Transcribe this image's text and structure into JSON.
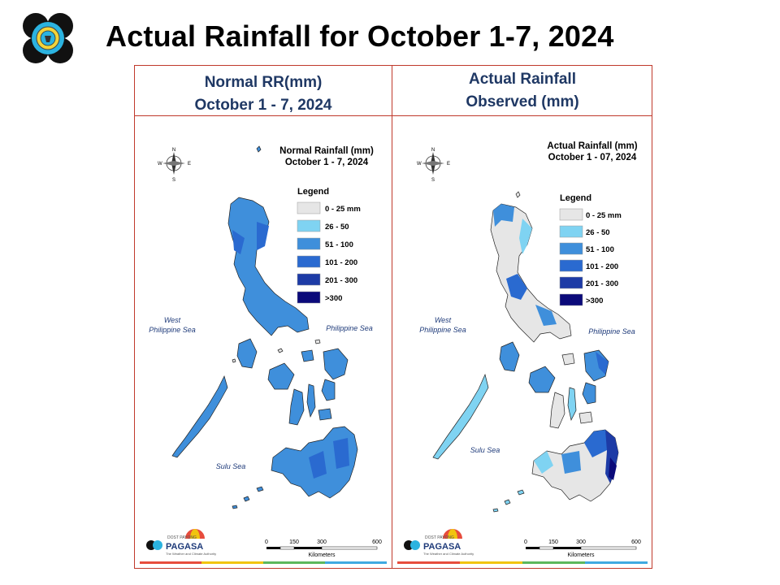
{
  "page": {
    "title": "Actual Rainfall for October 1-7, 2024"
  },
  "colors": {
    "c0": "#e6e6e6",
    "c1": "#7fd3f2",
    "c2": "#3f8fdb",
    "c3": "#2a6ad0",
    "c4": "#1d3ba6",
    "c5": "#0b0a7a",
    "frame": "#c0392b",
    "heading": "#1f3864"
  },
  "left_panel": {
    "heading_line1": "Normal RR(mm)",
    "heading_line2": "October 1 - 7, 2024",
    "map_title1": "Normal Rainfall (mm)",
    "map_title2": "October 1 - 7, 2024",
    "legend_title": "Legend",
    "legend": [
      "0 - 25 mm",
      "26 - 50",
      "51 - 100",
      "101 - 200",
      "201 - 300",
      ">300"
    ],
    "sea_west_1": "West",
    "sea_west_2": "Philippine Sea",
    "sea_east": "Philippine Sea",
    "sea_south": "Sulu Sea",
    "scale_ticks": [
      "0",
      "150",
      "300",
      "600"
    ],
    "scale_unit": "Kilometers",
    "brand_top": "DOST PAYONG",
    "brand_name": "PAGASA",
    "brand_tag": "The Weather and Climate Authority",
    "compass": {
      "n": "N",
      "s": "S",
      "e": "E",
      "w": "W"
    }
  },
  "right_panel": {
    "heading_line1": "Actual Rainfall",
    "heading_line2": "Observed (mm)",
    "map_title1": "Actual Rainfall (mm)",
    "map_title2": "October 1 - 07, 2024",
    "legend_title": "Legend",
    "legend": [
      "0 - 25 mm",
      "26 - 50",
      "51 - 100",
      "101 - 200",
      "201 - 300",
      ">300"
    ],
    "sea_west_1": "West",
    "sea_west_2": "Philippine Sea",
    "sea_east": "Philippine Sea",
    "sea_south": "Sulu Sea",
    "scale_ticks": [
      "0",
      "150",
      "300",
      "600"
    ],
    "scale_unit": "Kilometers",
    "brand_top": "DOST PAYONG",
    "brand_name": "PAGASA",
    "brand_tag": "The Weather and Climate Authority",
    "compass": {
      "n": "N",
      "s": "S",
      "e": "E",
      "w": "W"
    }
  }
}
